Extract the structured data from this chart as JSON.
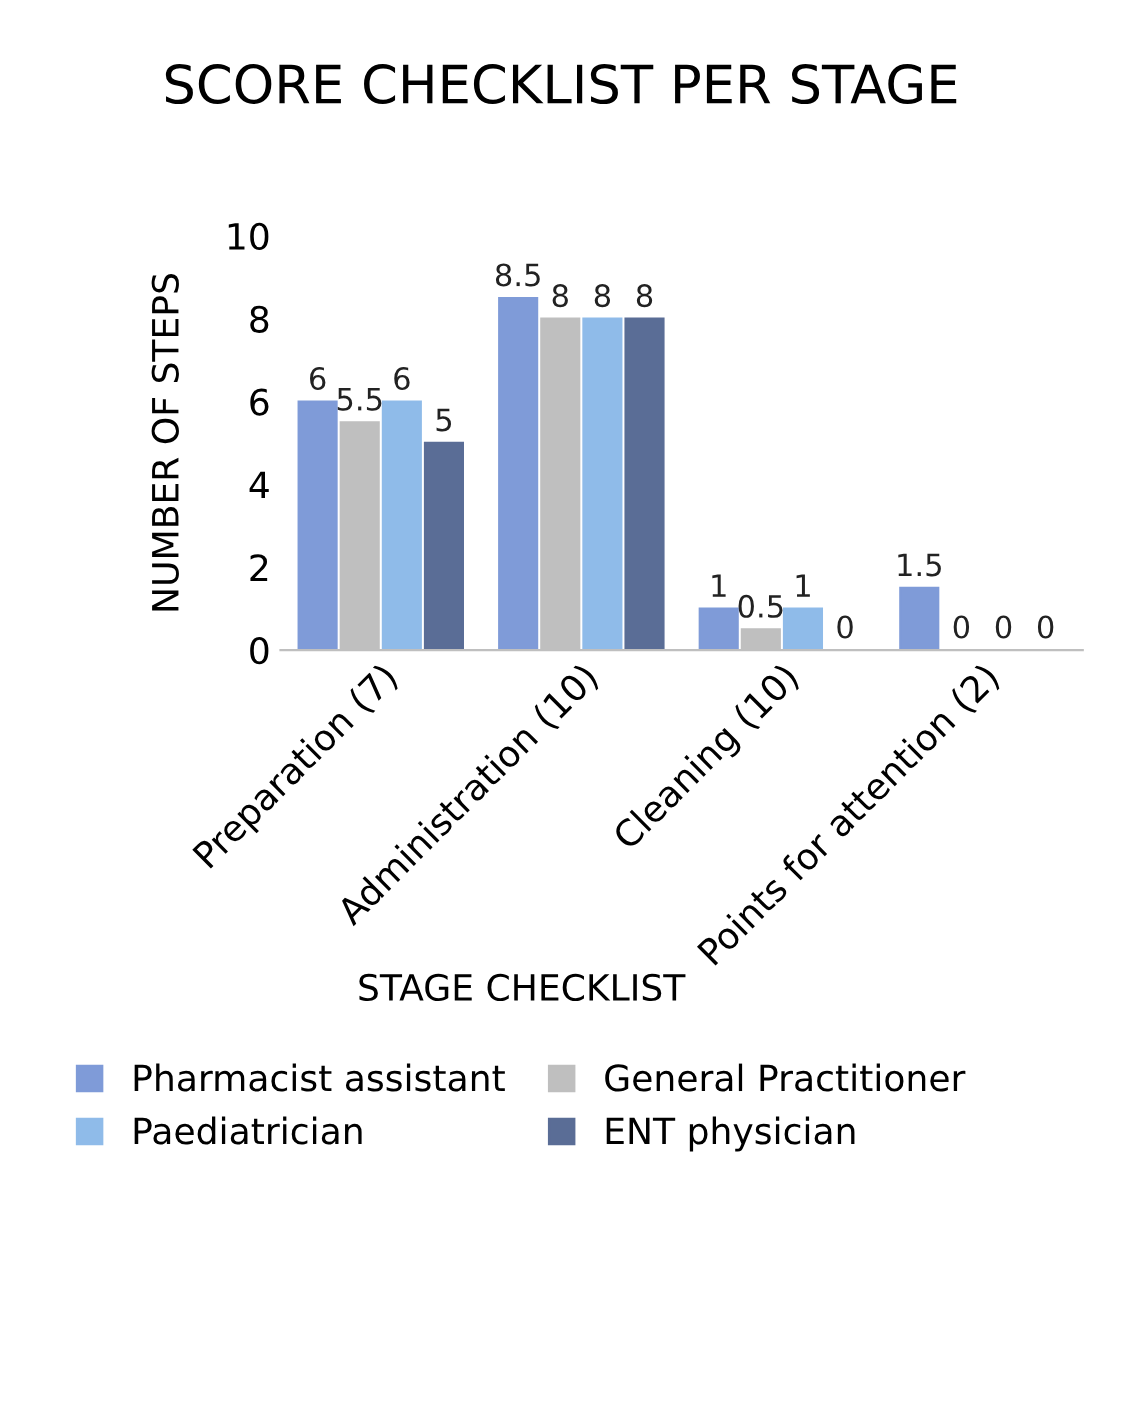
{
  "chart_data": {
    "type": "bar",
    "title": "SCORE CHECKLIST PER STAGE",
    "xlabel": "STAGE CHECKLIST",
    "ylabel": "NUMBER OF STEPS",
    "categories": [
      "Preparation (7)",
      "Administration (10)",
      "Cleaning (10)",
      "Points for attention (2)"
    ],
    "series": [
      {
        "name": "Pharmacist assistant",
        "color": "#7f9bd8",
        "values": [
          6,
          8.5,
          1,
          1.5
        ]
      },
      {
        "name": "General Practitioner",
        "color": "#bfbfbf",
        "values": [
          5.5,
          8,
          0.5,
          0
        ]
      },
      {
        "name": "Paediatrician",
        "color": "#8fbbe9",
        "values": [
          6,
          8,
          1,
          0
        ]
      },
      {
        "name": "ENT physician",
        "color": "#5a6d96",
        "values": [
          5,
          8,
          0,
          0
        ]
      }
    ],
    "ylim": [
      0,
      10
    ],
    "yticks": [
      0,
      2,
      4,
      6,
      8,
      10
    ],
    "data_labels": true,
    "grid": false,
    "legend": "bottom"
  }
}
